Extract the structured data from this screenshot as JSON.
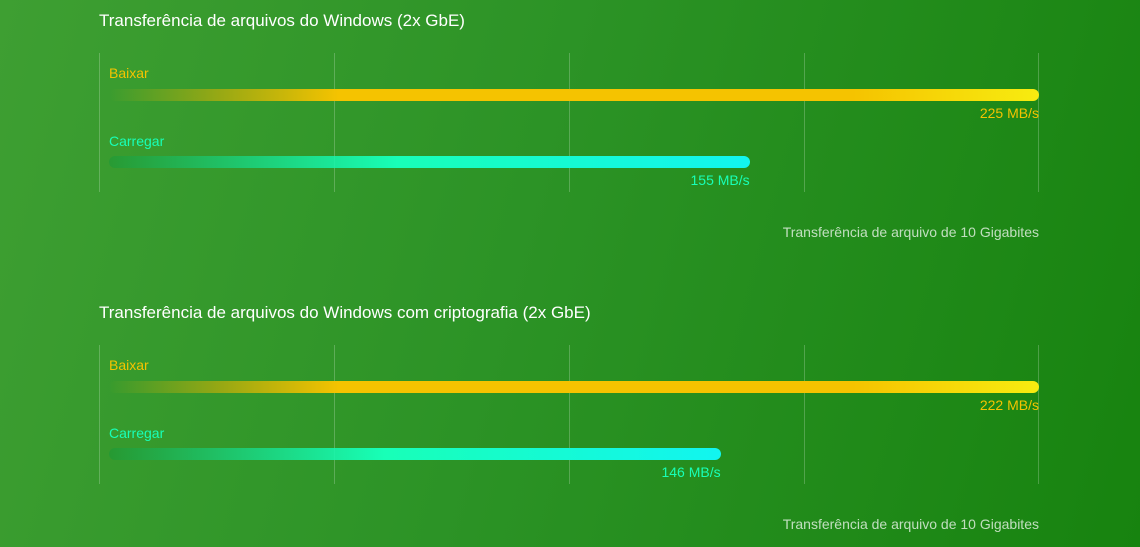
{
  "colors": {
    "download": "#f5c300",
    "download_end": "#f7ec10",
    "upload": "#18ffb7",
    "upload_end": "#12f5f0"
  },
  "footnote": "Transferência de arquivo de 10 Gigabites",
  "chart_data": [
    {
      "type": "bar",
      "orientation": "horizontal",
      "title": "Transferência de arquivos do Windows (2x GbE)",
      "xlim": [
        0,
        225
      ],
      "grid": true,
      "series": [
        {
          "name": "Baixar",
          "value": 225,
          "value_label": "225 MB/s"
        },
        {
          "name": "Carregar",
          "value": 155,
          "value_label": "155 MB/s"
        }
      ]
    },
    {
      "type": "bar",
      "orientation": "horizontal",
      "title": "Transferência de arquivos do Windows com criptografia (2x GbE)",
      "xlim": [
        0,
        222
      ],
      "grid": true,
      "series": [
        {
          "name": "Baixar",
          "value": 222,
          "value_label": "222 MB/s"
        },
        {
          "name": "Carregar",
          "value": 146,
          "value_label": "146 MB/s"
        }
      ]
    }
  ]
}
